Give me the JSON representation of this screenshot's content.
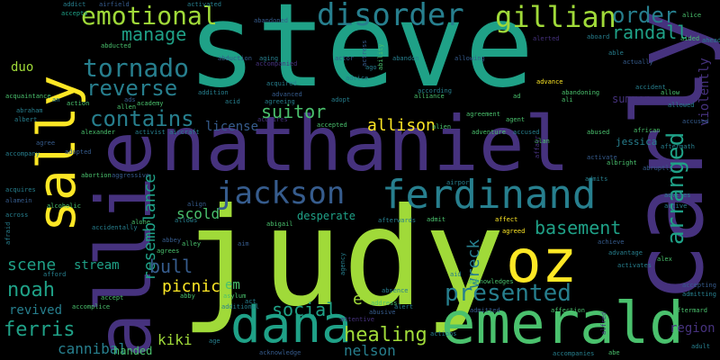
{
  "words": {
    "steve": "steve",
    "judy": "judy",
    "nathaniel": "nathaniel",
    "carly": "carly",
    "allie": "allie",
    "sally": "sally",
    "emerald": "emerald",
    "ferdinand": "ferdinand",
    "dana": "dana",
    "jackson": "jackson",
    "oz": "oz",
    "disorder": "disorder",
    "gillian": "gillian",
    "emotional": "emotional",
    "order": "order",
    "tornado": "tornado",
    "reverse": "reverse",
    "contains": "contains",
    "suitor": "suitor",
    "manage": "manage",
    "randall": "randall",
    "arranged": "arranged",
    "presented": "presented",
    "basement": "basement",
    "wreck": "wreck",
    "allison": "allison",
    "resemblance": "resemblance",
    "noah": "noah",
    "healing": "healing",
    "social": "social",
    "ferris": "ferris",
    "scene": "scene",
    "stream": "stream",
    "bull": "bull",
    "picnic": "picnic",
    "scold": "scold",
    "kiki": "kiki",
    "nelson": "nelson",
    "cannibal": "cannibal",
    "revived": "revived",
    "handed": "handed",
    "license": "license",
    "summon": "summon",
    "jessica": "jessica",
    "region": "region",
    "violently": "violently",
    "duo": "duo",
    "desperate": "desperate",
    "em": "em",
    "e": "e",
    "sm_addict": "addict",
    "sm_airfield": "airfield",
    "sm_accepts": "accepts",
    "sm_activated": "activated",
    "sm_abandoned": "abandoned",
    "sm_abducted": "abducted",
    "sm_abduction": "abduction",
    "sm_aging": "aging",
    "sm_actor": "actor",
    "sm_abandon": "abandon",
    "sm_allowing": "allowing",
    "sm_alerted": "alerted",
    "sm_aboard": "aboard",
    "sm_able": "able",
    "sm_actually": "actually",
    "sm_accident": "accident",
    "sm_allow": "allow",
    "sm_allowed": "allowed",
    "sm_accused": "accused",
    "sm_african": "african",
    "sm_aftermath": "aftermath",
    "sm_abruptly": "abruptly",
    "sm_advises": "advises",
    "sm_active": "active",
    "sm_alan": "alan",
    "sm_activate": "activate",
    "sm_albright": "albright",
    "sm_admits": "admits",
    "sm_affect": "affect",
    "sm_agreed": "agreed",
    "sm_admit": "admit",
    "sm_afterwards": "afterwards",
    "sm_achieve": "achieve",
    "sm_advantage": "advantage",
    "sm_activates": "activates",
    "sm_alex": "alex",
    "sm_accepting": "accepting",
    "sm_admitting": "admitting",
    "sm_aftermard": "aftermard",
    "sm_adult": "adult",
    "sm_abe": "abe",
    "sm_accompanies": "accompanies",
    "sm_admitted": "admitted",
    "sm_affection": "affection",
    "sm_actions": "actions",
    "sm_absence": "absence",
    "sm_acknowledges": "acknowledges",
    "sm_aid": "aid",
    "sm_address": "address",
    "sm_alert": "alert",
    "sm_abusive": "abusive",
    "sm_attentive": "attentive",
    "sm_acknowledge": "acknowledge",
    "sm_asylum": "asylum",
    "sm_act": "act",
    "sm_additional": "additional",
    "sm_abby": "abby",
    "sm_age": "age",
    "sm_accomplice": "accomplice",
    "sm_accept": "accept",
    "sm_afford": "afford",
    "sm_agrees": "agrees",
    "sm_alley": "alley",
    "sm_aim": "aim",
    "sm_alcoholic": "alcoholic",
    "sm_alamein": "alamein",
    "sm_acquires": "acquires",
    "sm_abortion": "abortion",
    "sm_accompany": "accompany",
    "sm_adopted": "adopted",
    "sm_agree": "agree",
    "sm_acquaintance": "acquaintance",
    "sm_abraham": "abraham",
    "sm_albert": "albert",
    "sm_action": "action",
    "sm_an": "an",
    "sm_allen": "allen",
    "sm_alexander": "alexander",
    "sm_activist": "activist",
    "sm_aircraft": "aircraft",
    "sm_ads": "ads",
    "sm_academy": "academy",
    "sm_addition": "addition",
    "sm_acid": "acid",
    "sm_advanced": "advanced",
    "sm_agreeing": "agreeing",
    "sm_acquires2": "acquires",
    "sm_acquired": "acquired",
    "sm_accompanied": "accompanied",
    "sm_adopt": "adopt",
    "sm_advice": "advice",
    "sm_according": "according",
    "sm_alliance": "alliance",
    "sm_ad": "ad",
    "sm_advance": "advance",
    "sm_abandoning": "abandoning",
    "sm_ali": "ali",
    "sm_agreement": "agreement",
    "sm_alien": "alien",
    "sm_accepted": "accepted",
    "sm_adventure": "adventure",
    "sm_agent": "agent",
    "sm_accused2": "accused",
    "sm_abused": "abused",
    "sm_actress": "actress",
    "sm_ability": "ability",
    "sm_abigail": "abigail",
    "sm_airport": "airport",
    "sm_agency": "agency",
    "sm_alone": "alone",
    "sm_ago": "ago",
    "sm_allows": "allows",
    "sm_aggressive": "aggressive",
    "sm_align": "align",
    "sm_afraid": "afraid",
    "sm_aboard2": "across",
    "sm_accidentally": "accidentally",
    "sm_alice": "alice",
    "sm_aided": "aided",
    "sm_ahead": "ahead",
    "sm_alfred": "alfred",
    "sm_affair": "affair",
    "sm_abbey": "abbey"
  },
  "colors": {
    "yellow": "#fde725",
    "lime": "#a0da39",
    "green": "#4ac16d",
    "teal": "#1fa187",
    "cyan": "#277f8e",
    "blue": "#365c8d",
    "indigo": "#46327e",
    "purple": "#440154"
  }
}
